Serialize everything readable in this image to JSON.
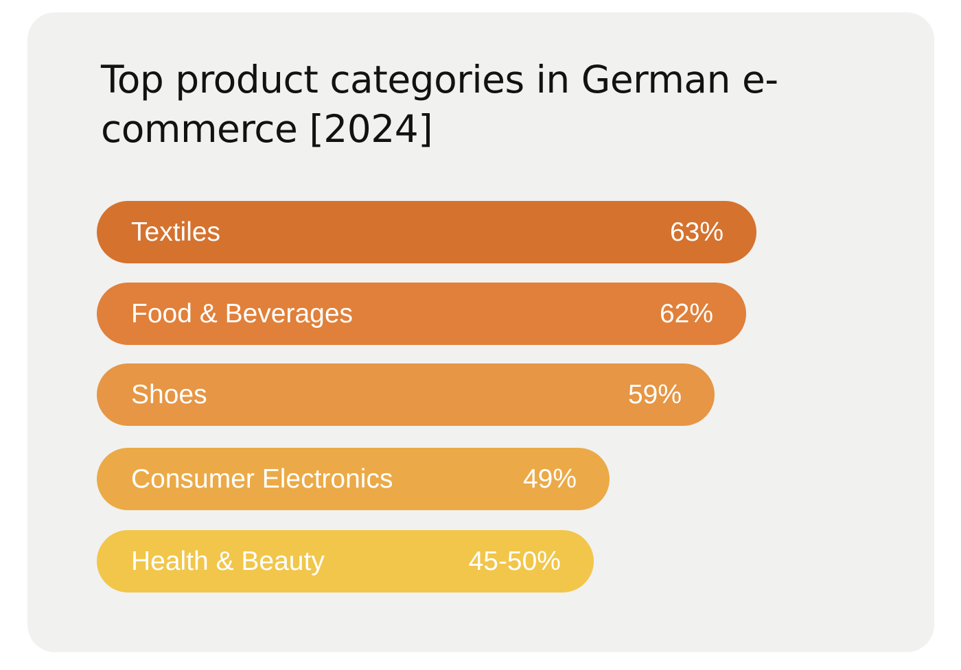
{
  "chart_data": {
    "type": "bar",
    "orientation": "horizontal",
    "title": "Top product categories in German e-commerce [2024]",
    "categories": [
      "Textiles",
      "Food & Beverages",
      "Shoes",
      "Consumer Electronics",
      "Health & Beauty"
    ],
    "values": [
      63,
      62,
      59,
      49,
      47.5
    ],
    "value_labels": [
      "63%",
      "62%",
      "59%",
      "49%",
      "45-50%"
    ],
    "bar_colors": [
      "#d5722e",
      "#e0803a",
      "#e69644",
      "#ebaa47",
      "#f1c64a"
    ],
    "grid": false,
    "legend": false
  },
  "colors": {
    "card_background": "#f1f1f0",
    "title_text": "#121212",
    "bar_text": "#ffffff"
  }
}
